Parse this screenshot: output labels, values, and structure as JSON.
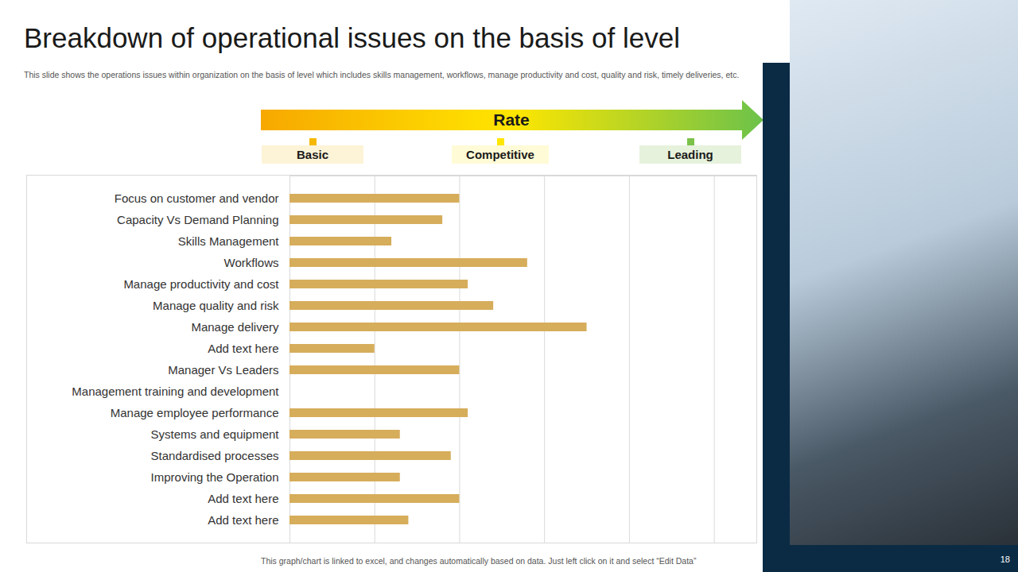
{
  "chart_data": {
    "type": "bar",
    "orientation": "horizontal",
    "title": "Breakdown of operational issues on the basis of level",
    "subtitle": "This slide shows the operations issues within organization on the basis of level which includes skills management, workflows, manage productivity and cost, quality and risk, timely deliveries, etc.",
    "rate_scale": {
      "title": "Rate",
      "levels": [
        "Basic",
        "Competitive",
        "Leading"
      ]
    },
    "categories": [
      "Focus on customer and vendor",
      "Capacity Vs Demand Planning",
      "Skills Management",
      "Workflows",
      "Manage productivity and cost",
      "Manage quality and risk",
      "Manage delivery",
      "Add text here",
      "Manager Vs Leaders",
      "Management training and development",
      "Manage employee performance",
      "Systems and equipment",
      "Standardised processes",
      "Improving the Operation",
      "Add text here",
      "Add text here"
    ],
    "values": [
      2.0,
      1.8,
      1.2,
      2.8,
      2.1,
      2.4,
      3.5,
      1.0,
      2.0,
      0,
      2.1,
      1.3,
      1.9,
      1.3,
      2.0,
      1.4
    ],
    "color": "#d6ad5b",
    "xlim": [
      0,
      5.5
    ],
    "xticks": [
      0,
      1,
      2,
      3,
      4,
      5
    ],
    "grid": true,
    "tick_labels": "y",
    "caption": "This graph/chart is linked to excel, and changes automatically based on data. Just left click on it and select “Edit Data”",
    "page_number": 18
  }
}
